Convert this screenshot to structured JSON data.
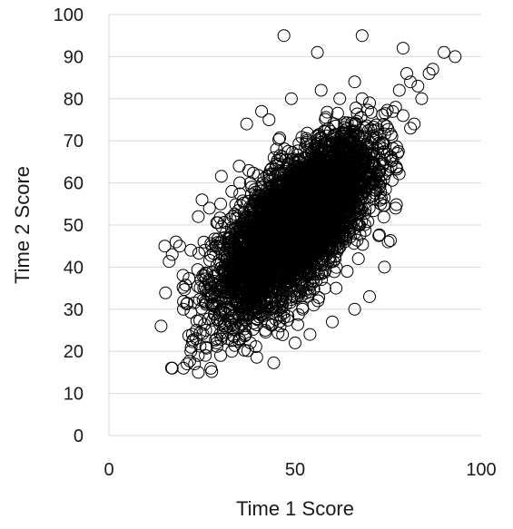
{
  "chart_data": {
    "type": "scatter",
    "xlabel": "Time 1 Score",
    "ylabel": "Time 2 Score",
    "xlim": [
      0,
      100
    ],
    "ylim": [
      0,
      100
    ],
    "x_ticks": [
      "0",
      "50",
      "100"
    ],
    "y_ticks": [
      "0",
      "10",
      "20",
      "30",
      "40",
      "50",
      "60",
      "70",
      "80",
      "90",
      "100"
    ],
    "grid": "horizontal",
    "marker": "open-circle",
    "marker_color": "#000000",
    "points_note": "dense cloud of roughly 5000 points, positively correlated; core centered near (50, 50)",
    "cloud": {
      "n": 5000,
      "x_mean": 50,
      "x_sd": 10,
      "y_mean": 50,
      "y_sd": 10,
      "correlation": 0.7
    },
    "series": [
      {
        "x": [
          47,
          68,
          79,
          90,
          93,
          56,
          86,
          80,
          81,
          83,
          87,
          78,
          66,
          62,
          57,
          49,
          41,
          43,
          37,
          68,
          70,
          77,
          82,
          84,
          79,
          76,
          81,
          45,
          43,
          38,
          35,
          33,
          30,
          24,
          19,
          18,
          17,
          15,
          14,
          17,
          21,
          22,
          20,
          23,
          24,
          24,
          26,
          30,
          33,
          35,
          50,
          54,
          60,
          66,
          70,
          74,
          75,
          77,
          71,
          64,
          58,
          52,
          47,
          40,
          36,
          31,
          27,
          25,
          22,
          20,
          26,
          29,
          32,
          38,
          42,
          46,
          55,
          61,
          67,
          73
        ],
        "y": [
          95,
          95,
          92,
          91,
          90,
          91,
          86,
          86,
          84,
          83,
          87,
          82,
          84,
          80,
          82,
          80,
          77,
          75,
          74,
          80,
          79,
          78,
          74,
          80,
          76,
          71,
          73,
          68,
          62,
          60,
          64,
          58,
          55,
          52,
          45,
          46,
          43,
          45,
          26,
          16,
          17,
          20,
          16,
          17,
          15,
          19,
          21,
          19,
          20,
          23,
          22,
          24,
          27,
          30,
          33,
          40,
          46,
          54,
          60,
          39,
          35,
          30,
          28,
          33,
          39,
          47,
          54,
          56,
          44,
          30,
          25,
          22,
          23,
          22,
          25,
          26,
          31,
          35,
          42,
          55
        ]
      }
    ]
  }
}
